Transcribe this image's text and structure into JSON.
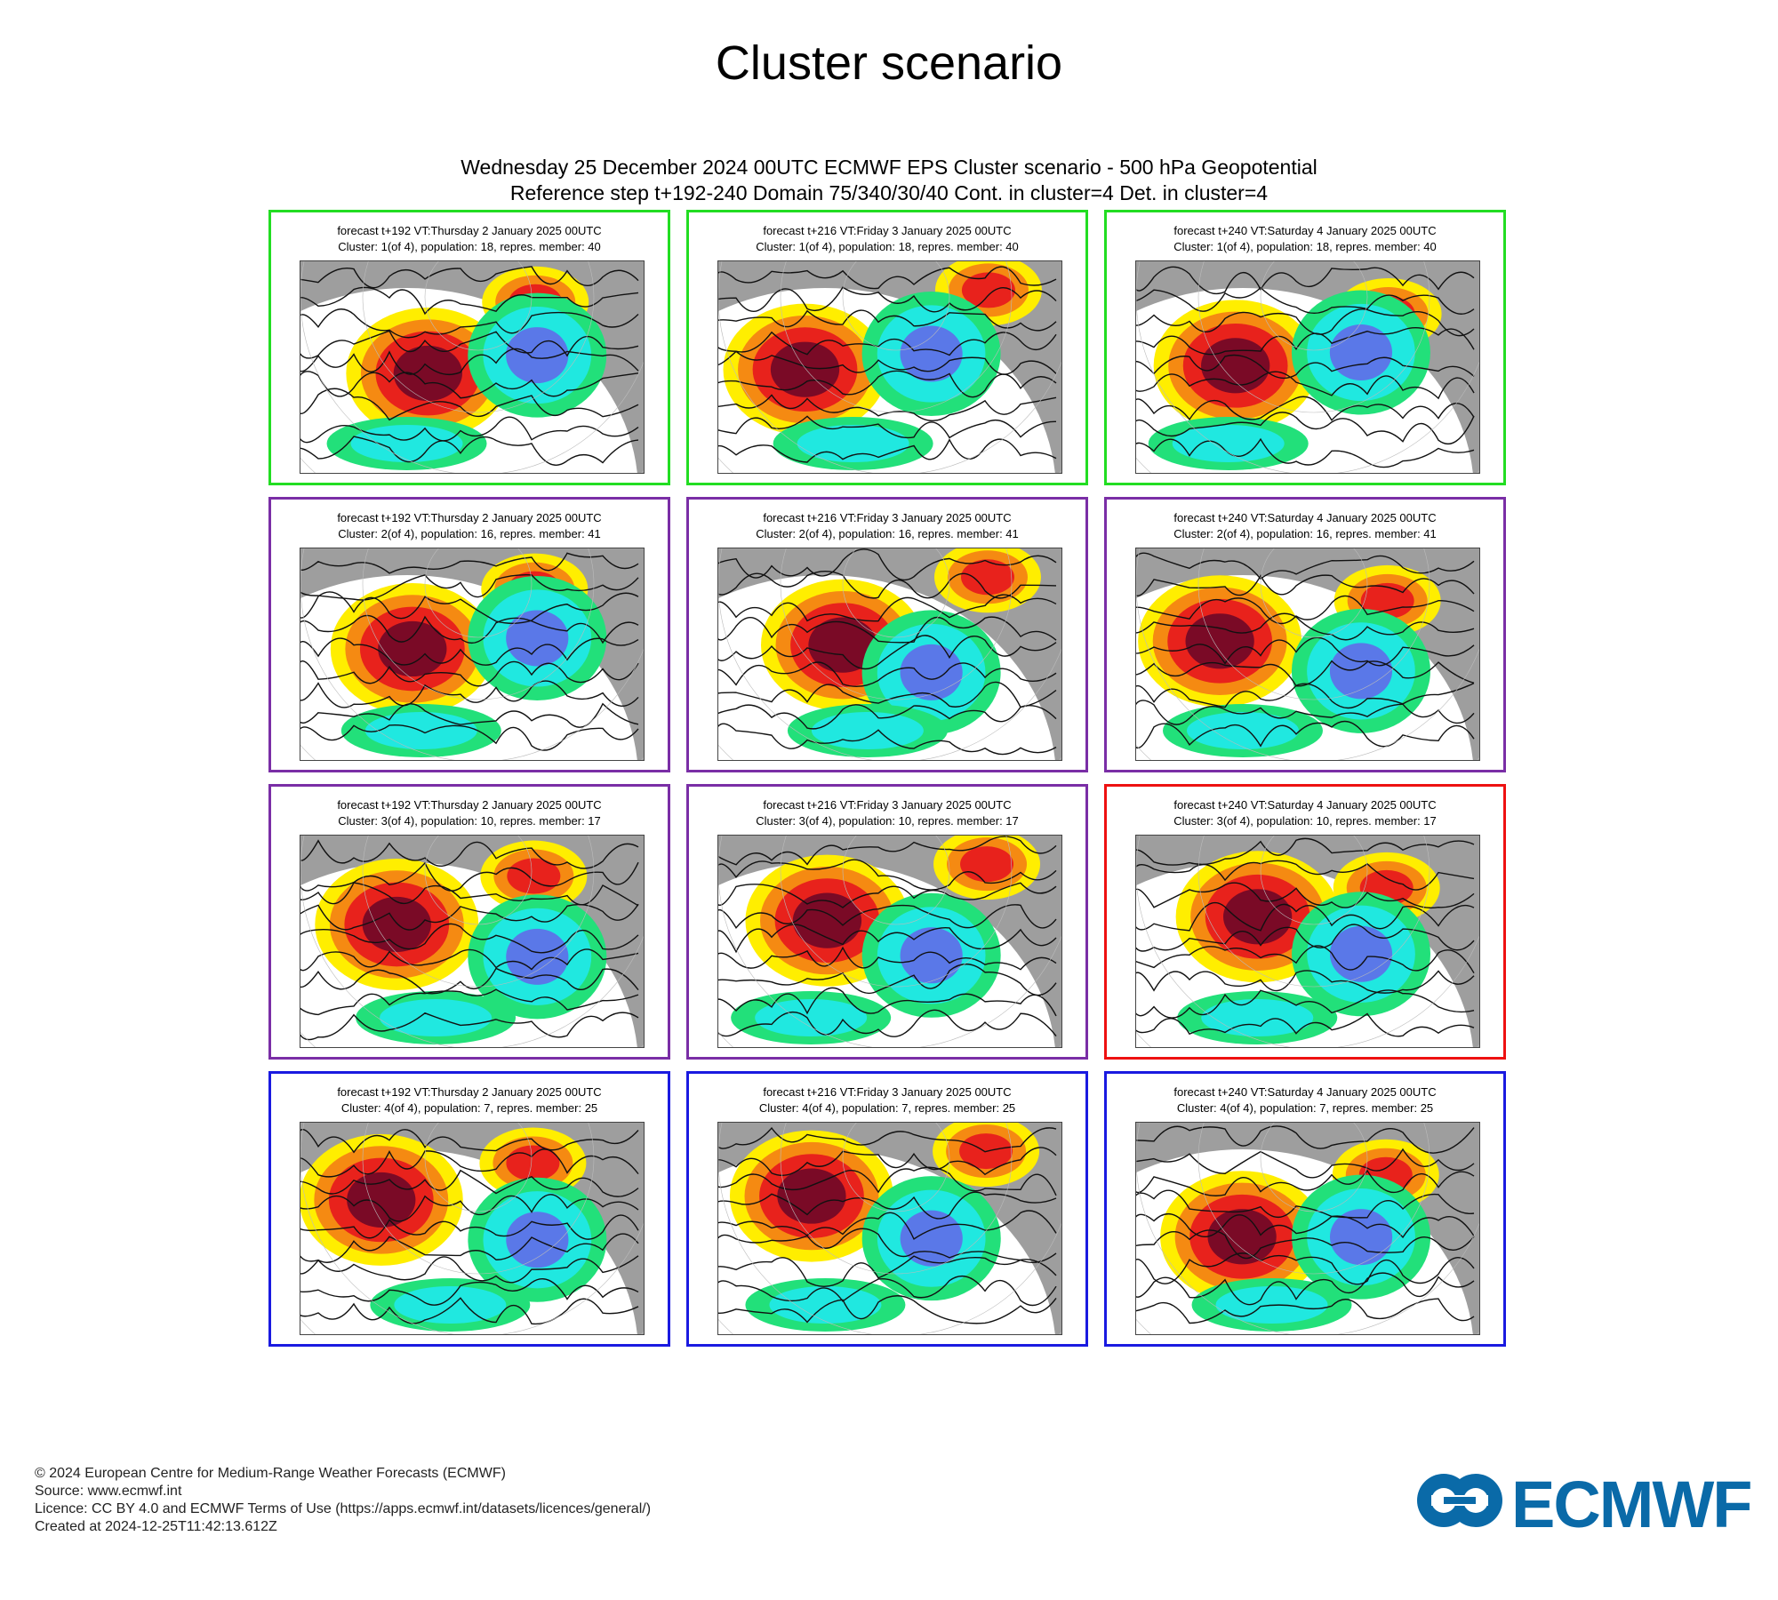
{
  "page_title": "Cluster scenario",
  "header": {
    "line1": "Wednesday 25 December 2024 00UTC ECMWF EPS Cluster scenario - 500 hPa Geopotential",
    "line2": "Reference step t+192-240 Domain 75/340/30/40 Cont. in cluster=4 Det. in cluster=4"
  },
  "colors": {
    "cluster_green": "#22dd22",
    "cluster_purple": "#7a2ea6",
    "cluster_red": "#ee1111",
    "cluster_blue": "#1a1ae0",
    "anomaly_dark_red": "#7a0a26",
    "anomaly_red": "#e8221c",
    "anomaly_orange": "#f58a12",
    "anomaly_yellow": "#ffee00",
    "anomaly_green": "#22e07a",
    "anomaly_cyan": "#20e8e0",
    "anomaly_blue": "#5a78e8",
    "land_grey": "#9e9e9e"
  },
  "panels": [
    {
      "line1": "forecast t+192 VT:Thursday 2 January 2025 00UTC",
      "line2": "Cluster: 1(of 4), population: 18, repres. member: 40",
      "frame": "green"
    },
    {
      "line1": "forecast t+216 VT:Friday 3 January 2025 00UTC",
      "line2": "Cluster: 1(of 4), population: 18, repres. member: 40",
      "frame": "green"
    },
    {
      "line1": "forecast t+240 VT:Saturday 4 January 2025 00UTC",
      "line2": "Cluster: 1(of 4), population: 18, repres. member: 40",
      "frame": "green"
    },
    {
      "line1": "forecast t+192 VT:Thursday 2 January 2025 00UTC",
      "line2": "Cluster: 2(of 4), population: 16, repres. member: 41",
      "frame": "purple"
    },
    {
      "line1": "forecast t+216 VT:Friday 3 January 2025 00UTC",
      "line2": "Cluster: 2(of 4), population: 16, repres. member: 41",
      "frame": "purple"
    },
    {
      "line1": "forecast t+240 VT:Saturday 4 January 2025 00UTC",
      "line2": "Cluster: 2(of 4), population: 16, repres. member: 41",
      "frame": "purple"
    },
    {
      "line1": "forecast t+192 VT:Thursday 2 January 2025 00UTC",
      "line2": "Cluster: 3(of 4), population: 10, repres. member: 17",
      "frame": "purple"
    },
    {
      "line1": "forecast t+216 VT:Friday 3 January 2025 00UTC",
      "line2": "Cluster: 3(of 4), population: 10, repres. member: 17",
      "frame": "purple"
    },
    {
      "line1": "forecast t+240 VT:Saturday 4 January 2025 00UTC",
      "line2": "Cluster: 3(of 4), population: 10, repres. member: 17",
      "frame": "red"
    },
    {
      "line1": "forecast t+192 VT:Thursday 2 January 2025 00UTC",
      "line2": "Cluster: 4(of 4), population: 7, repres. member: 25",
      "frame": "blue"
    },
    {
      "line1": "forecast t+216 VT:Friday 3 January 2025 00UTC",
      "line2": "Cluster: 4(of 4), population: 7, repres. member: 25",
      "frame": "blue"
    },
    {
      "line1": "forecast t+240 VT:Saturday 4 January 2025 00UTC",
      "line2": "Cluster: 4(of 4), population: 7, repres. member: 25",
      "frame": "blue"
    }
  ],
  "footer": {
    "copyright": "© 2024 European Centre for Medium-Range Weather Forecasts (ECMWF)",
    "source": "Source: www.ecmwf.int",
    "licence": "Licence: CC BY 4.0 and ECMWF Terms of Use (https://apps.ecmwf.int/datasets/licences/general/)",
    "created": "Created at 2024-12-25T11:42:13.612Z"
  },
  "logo": {
    "text": "ECMWF"
  }
}
